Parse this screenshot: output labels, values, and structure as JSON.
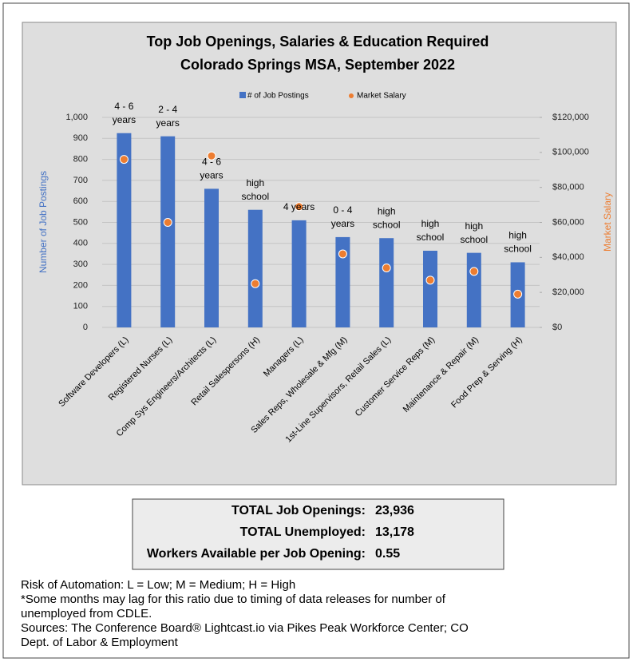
{
  "chart_data": {
    "type": "bar",
    "title": "Top Job Openings, Salaries & Education Required",
    "subtitle": "Colorado Springs MSA, September 2022",
    "categories": [
      "Software Developers (L)",
      "Registered Nurses (L)",
      "Comp Sys Engineers/Architects (L)",
      "Retail Salespersons (H)",
      "Managers (L)",
      "Sales Reps, Wholesale & Mfg (M)",
      "1st-Line Supervisors, Retail Sales (L)",
      "Customer Service Reps (M)",
      "Maintenance & Repair (M)",
      "Food Prep & Serving (H)"
    ],
    "series": [
      {
        "name": "# of Job Postings",
        "color": "#4472c4",
        "values": [
          925,
          910,
          660,
          560,
          510,
          430,
          425,
          365,
          355,
          310
        ]
      },
      {
        "name": "Market Salary",
        "color": "#ed7d31",
        "axis": "y2",
        "values": [
          96000,
          60000,
          98000,
          25000,
          69000,
          42000,
          34000,
          27000,
          32000,
          19000
        ]
      }
    ],
    "education_labels": [
      [
        "4 - 6",
        "years"
      ],
      [
        "2 - 4",
        "years"
      ],
      [
        "4 - 6",
        "years"
      ],
      [
        "high",
        "school"
      ],
      [
        "4 years"
      ],
      [
        "0 - 4",
        "years"
      ],
      [
        "high",
        "school"
      ],
      [
        "high",
        "school"
      ],
      [
        "high",
        "school"
      ],
      [
        "high",
        "school"
      ]
    ],
    "ylabel": "Number of Job Postings",
    "y2label": "Market Salary",
    "ylim": [
      0,
      1000
    ],
    "yticks": [
      0,
      100,
      200,
      300,
      400,
      500,
      600,
      700,
      800,
      900,
      {
        "value": 1000,
        "label": "1,000"
      }
    ],
    "y2lim": [
      0,
      120000
    ],
    "y2ticks": [
      {
        "value": 0,
        "label": "$0"
      },
      {
        "value": 20000,
        "label": "$20,000"
      },
      {
        "value": 40000,
        "label": "$40,000"
      },
      {
        "value": 60000,
        "label": "$60,000"
      },
      {
        "value": 80000,
        "label": "$80,000"
      },
      {
        "value": 100000,
        "label": "$100,000"
      },
      {
        "value": 120000,
        "label": "$120,000"
      }
    ],
    "grid": true,
    "legend": "top"
  },
  "summary": [
    {
      "label": "TOTAL Job Openings:",
      "value": "23,936"
    },
    {
      "label": "TOTAL Unemployed:",
      "value": "13,178"
    },
    {
      "label": "Workers Available per Job Opening:",
      "value": "0.55"
    }
  ],
  "notes": [
    "Risk of Automation: L = Low; M = Medium; H = High",
    "*Some months may lag for this ratio due to timing of data releases for number of",
    "unemployed from CDLE.",
    "Sources: The Conference Board® Lightcast.io via Pikes Peak Workforce Center; CO",
    "Dept. of Labor & Employment"
  ]
}
